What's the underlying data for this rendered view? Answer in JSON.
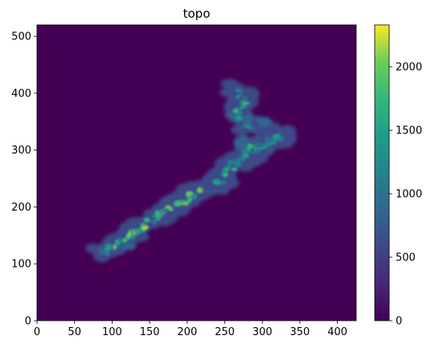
{
  "chart_data": {
    "type": "heatmap",
    "title": "topo",
    "xlabel": "",
    "ylabel": "",
    "xlim": [
      0,
      425
    ],
    "ylim": [
      0,
      520
    ],
    "x_ticks": [
      0,
      50,
      100,
      150,
      200,
      250,
      300,
      350,
      400
    ],
    "y_ticks": [
      0,
      100,
      200,
      300,
      400,
      500
    ],
    "colormap": "viridis",
    "colorbar": {
      "range": [
        0,
        2330
      ],
      "ticks": [
        0,
        500,
        1000,
        1500,
        2000
      ]
    },
    "background_value": 0,
    "features": [
      {
        "label": "",
        "kind": "south-island-ridge",
        "points": [
          [
            85,
            118
          ],
          [
            100,
            130
          ],
          [
            120,
            145
          ],
          [
            140,
            165
          ],
          [
            160,
            185
          ],
          [
            180,
            200
          ],
          [
            200,
            215
          ],
          [
            220,
            230
          ],
          [
            235,
            238
          ],
          [
            245,
            245
          ]
        ],
        "peak": 2000
      },
      {
        "label": "",
        "kind": "north-island",
        "points": [
          [
            240,
            240
          ],
          [
            255,
            265
          ],
          [
            270,
            285
          ],
          [
            285,
            300
          ],
          [
            300,
            310
          ],
          [
            315,
            320
          ],
          [
            325,
            325
          ],
          [
            265,
            350
          ],
          [
            275,
            380
          ],
          [
            265,
            405
          ]
        ],
        "peak": 1500
      }
    ]
  }
}
